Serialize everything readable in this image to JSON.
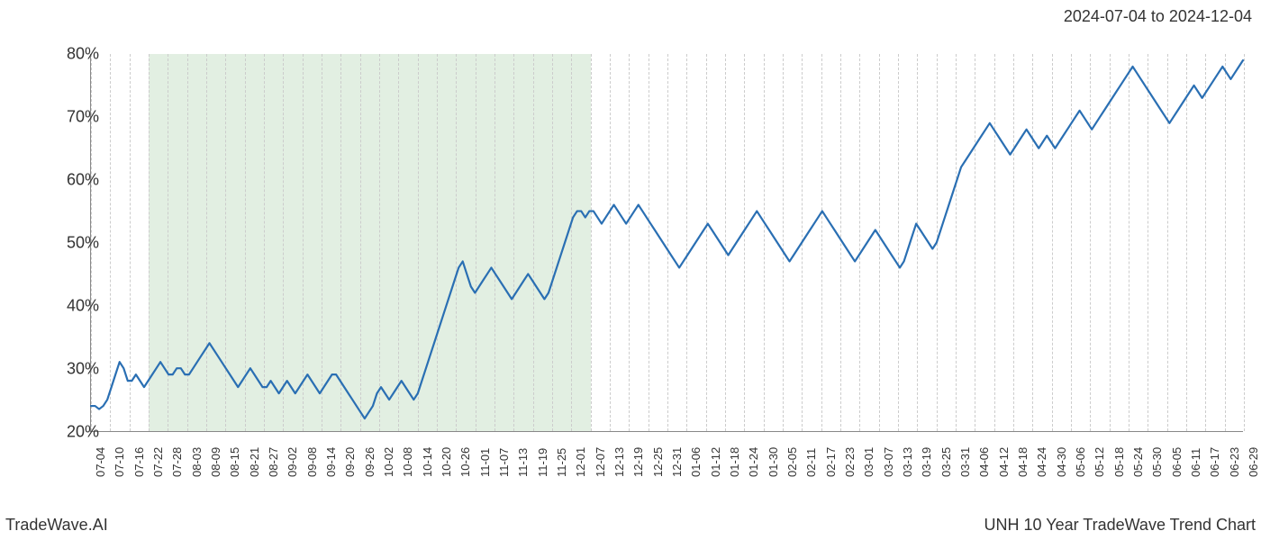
{
  "date_range_label": "2024-07-04 to 2024-12-04",
  "footer_left": "TradeWave.AI",
  "footer_right": "UNH 10 Year TradeWave Trend Chart",
  "chart": {
    "type": "line",
    "background_color": "#ffffff",
    "line_color": "#2a6fb3",
    "line_width": 2.2,
    "grid_color": "#cccccc",
    "axis_color": "#888888",
    "highlight_color": "rgba(140,190,140,0.25)",
    "ylim": [
      20,
      80
    ],
    "y_ticks": [
      20,
      30,
      40,
      50,
      60,
      70,
      80
    ],
    "y_tick_suffix": "%",
    "y_tick_fontsize": 18,
    "x_tick_fontsize": 13,
    "highlight_x_start": 3,
    "highlight_x_end": 26,
    "x_labels": [
      "07-04",
      "07-10",
      "07-16",
      "07-22",
      "07-28",
      "08-03",
      "08-09",
      "08-15",
      "08-21",
      "08-27",
      "09-02",
      "09-08",
      "09-14",
      "09-20",
      "09-26",
      "10-02",
      "10-08",
      "10-14",
      "10-20",
      "10-26",
      "11-01",
      "11-07",
      "11-13",
      "11-19",
      "11-25",
      "12-01",
      "12-07",
      "12-13",
      "12-19",
      "12-25",
      "12-31",
      "01-06",
      "01-12",
      "01-18",
      "01-24",
      "01-30",
      "02-05",
      "02-11",
      "02-17",
      "02-23",
      "03-01",
      "03-07",
      "03-13",
      "03-19",
      "03-25",
      "03-31",
      "04-06",
      "04-12",
      "04-18",
      "04-24",
      "04-30",
      "05-06",
      "05-12",
      "05-18",
      "05-24",
      "05-30",
      "06-05",
      "06-11",
      "06-17",
      "06-23",
      "06-29"
    ],
    "values": [
      24,
      24,
      23.5,
      24,
      25,
      27,
      29,
      31,
      30,
      28,
      28,
      29,
      28,
      27,
      28,
      29,
      30,
      31,
      30,
      29,
      29,
      30,
      30,
      29,
      29,
      30,
      31,
      32,
      33,
      34,
      33,
      32,
      31,
      30,
      29,
      28,
      27,
      28,
      29,
      30,
      29,
      28,
      27,
      27,
      28,
      27,
      26,
      27,
      28,
      27,
      26,
      27,
      28,
      29,
      28,
      27,
      26,
      27,
      28,
      29,
      29,
      28,
      27,
      26,
      25,
      24,
      23,
      22,
      23,
      24,
      26,
      27,
      26,
      25,
      26,
      27,
      28,
      27,
      26,
      25,
      26,
      28,
      30,
      32,
      34,
      36,
      38,
      40,
      42,
      44,
      46,
      47,
      45,
      43,
      42,
      43,
      44,
      45,
      46,
      45,
      44,
      43,
      42,
      41,
      42,
      43,
      44,
      45,
      44,
      43,
      42,
      41,
      42,
      44,
      46,
      48,
      50,
      52,
      54,
      55,
      55,
      54,
      55,
      55,
      54,
      53,
      54,
      55,
      56,
      55,
      54,
      53,
      54,
      55,
      56,
      55,
      54,
      53,
      52,
      51,
      50,
      49,
      48,
      47,
      46,
      47,
      48,
      49,
      50,
      51,
      52,
      53,
      52,
      51,
      50,
      49,
      48,
      49,
      50,
      51,
      52,
      53,
      54,
      55,
      54,
      53,
      52,
      51,
      50,
      49,
      48,
      47,
      48,
      49,
      50,
      51,
      52,
      53,
      54,
      55,
      54,
      53,
      52,
      51,
      50,
      49,
      48,
      47,
      48,
      49,
      50,
      51,
      52,
      51,
      50,
      49,
      48,
      47,
      46,
      47,
      49,
      51,
      53,
      52,
      51,
      50,
      49,
      50,
      52,
      54,
      56,
      58,
      60,
      62,
      63,
      64,
      65,
      66,
      67,
      68,
      69,
      68,
      67,
      66,
      65,
      64,
      65,
      66,
      67,
      68,
      67,
      66,
      65,
      66,
      67,
      66,
      65,
      66,
      67,
      68,
      69,
      70,
      71,
      70,
      69,
      68,
      69,
      70,
      71,
      72,
      73,
      74,
      75,
      76,
      77,
      78,
      77,
      76,
      75,
      74,
      73,
      72,
      71,
      70,
      69,
      70,
      71,
      72,
      73,
      74,
      75,
      74,
      73,
      74,
      75,
      76,
      77,
      78,
      77,
      76,
      77,
      78,
      79
    ]
  }
}
